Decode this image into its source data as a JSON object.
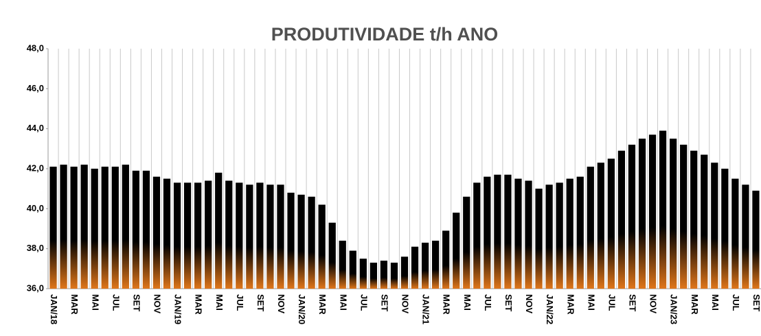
{
  "chart_data": {
    "type": "bar",
    "title": "PRODUTIVIDADE t/h ANO",
    "categories": [
      "JAN/18",
      null,
      "MAR",
      null,
      "MAI",
      null,
      "JUL",
      null,
      "SET",
      null,
      "NOV",
      null,
      "JAN/19",
      null,
      "MAR",
      null,
      "MAI",
      null,
      "JUL",
      null,
      "SET",
      null,
      "NOV",
      null,
      "JAN/20",
      null,
      "MAR",
      null,
      "MAI",
      null,
      "JUL",
      null,
      "SET",
      null,
      "NOV",
      null,
      "JAN/21",
      null,
      "MAR",
      null,
      "MAI",
      null,
      "JUL",
      null,
      "SET",
      null,
      "NOV",
      null,
      "JAN/22",
      null,
      "MAR",
      null,
      "MAI",
      null,
      "JUL",
      null,
      "SET",
      null,
      "NOV",
      null,
      "JAN/23",
      null,
      "MAR",
      null,
      "MAI",
      null,
      "JUL",
      null,
      "SET"
    ],
    "values": [
      42.1,
      42.2,
      42.1,
      42.2,
      42.0,
      42.1,
      42.1,
      42.2,
      41.9,
      41.9,
      41.6,
      41.5,
      41.3,
      41.3,
      41.3,
      41.4,
      41.8,
      41.4,
      41.3,
      41.2,
      41.3,
      41.2,
      41.2,
      40.8,
      40.7,
      40.6,
      40.2,
      39.3,
      38.4,
      37.9,
      37.5,
      37.3,
      37.4,
      37.3,
      37.6,
      38.1,
      38.3,
      38.4,
      38.9,
      39.8,
      40.6,
      41.3,
      41.6,
      41.7,
      41.7,
      41.5,
      41.4,
      41.0,
      41.2,
      41.3,
      41.5,
      41.6,
      42.1,
      42.3,
      42.5,
      42.9,
      43.2,
      43.5,
      43.7,
      43.9,
      43.5,
      43.2,
      42.9,
      42.7,
      42.3,
      42.0,
      41.5,
      41.2,
      40.9
    ],
    "color": "#000000",
    "gradient_color": "#e0761a",
    "ylim": [
      36,
      48
    ],
    "yticks": [
      {
        "value": 36,
        "label": "36,0"
      },
      {
        "value": 38,
        "label": "38,0"
      },
      {
        "value": 40,
        "label": "40,0"
      },
      {
        "value": 42,
        "label": "42,0"
      },
      {
        "value": 44,
        "label": "44,0"
      },
      {
        "value": 46,
        "label": "46,0"
      },
      {
        "value": 48,
        "label": "48,0"
      }
    ],
    "grid": true
  }
}
